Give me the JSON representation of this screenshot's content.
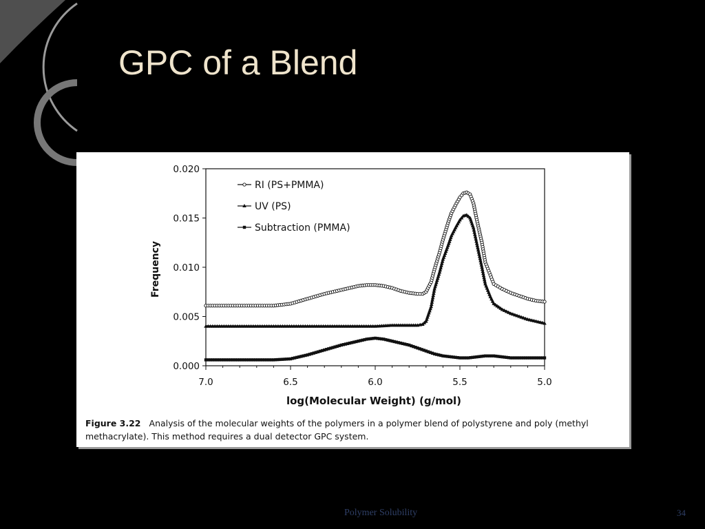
{
  "slide": {
    "title": "GPC of a Blend",
    "footer": "Polymer Solubility",
    "page_number": "34"
  },
  "caption": {
    "label": "Figure 3.22",
    "text": "Analysis of the molecular weights of the polymers in a polymer blend of polystyrene and poly (methyl methacrylate). This method requires a dual detector GPC system."
  },
  "colors": {
    "background": "#000000",
    "title": "#efe4cc",
    "footer": "#2f3f66",
    "ink": "#111111"
  },
  "chart_data": {
    "type": "line",
    "title": "",
    "xlabel": "log(Molecular Weight) (g/mol)",
    "ylabel": "Frequency",
    "xlim": [
      7.0,
      5.0
    ],
    "ylim": [
      0.0,
      0.02
    ],
    "x_ticks": [
      "7.0",
      "6.5",
      "6.0",
      "5.5",
      "5.0"
    ],
    "y_ticks": [
      "0.020",
      "0.015",
      "0.010",
      "0.005",
      "0.000"
    ],
    "grid": false,
    "legend_position": "top-left",
    "series": [
      {
        "name": "RI (PS+PMMA)",
        "marker": "circle",
        "x": [
          7.0,
          6.8,
          6.6,
          6.5,
          6.4,
          6.3,
          6.2,
          6.1,
          6.05,
          6.0,
          5.95,
          5.9,
          5.85,
          5.8,
          5.75,
          5.72,
          5.7,
          5.67,
          5.65,
          5.62,
          5.6,
          5.57,
          5.55,
          5.52,
          5.5,
          5.48,
          5.46,
          5.44,
          5.42,
          5.4,
          5.37,
          5.35,
          5.32,
          5.3,
          5.25,
          5.2,
          5.15,
          5.1,
          5.05,
          5.0
        ],
        "y": [
          0.0061,
          0.0061,
          0.0061,
          0.0063,
          0.0068,
          0.0073,
          0.0077,
          0.0081,
          0.0082,
          0.0082,
          0.0081,
          0.0079,
          0.0076,
          0.0074,
          0.0073,
          0.0073,
          0.0075,
          0.0085,
          0.0098,
          0.0115,
          0.0128,
          0.0145,
          0.0155,
          0.0165,
          0.0171,
          0.0175,
          0.0176,
          0.0174,
          0.0165,
          0.0148,
          0.0125,
          0.0105,
          0.0092,
          0.0083,
          0.0078,
          0.0074,
          0.0071,
          0.0068,
          0.0066,
          0.0065
        ]
      },
      {
        "name": "UV (PS)",
        "marker": "triangle",
        "x": [
          7.0,
          6.8,
          6.6,
          6.4,
          6.2,
          6.0,
          5.9,
          5.8,
          5.75,
          5.72,
          5.7,
          5.67,
          5.65,
          5.62,
          5.6,
          5.57,
          5.55,
          5.52,
          5.5,
          5.48,
          5.46,
          5.44,
          5.42,
          5.4,
          5.37,
          5.35,
          5.32,
          5.3,
          5.25,
          5.2,
          5.15,
          5.1,
          5.05,
          5.0
        ],
        "y": [
          0.004,
          0.004,
          0.004,
          0.004,
          0.004,
          0.004,
          0.0041,
          0.0041,
          0.0041,
          0.0042,
          0.0045,
          0.006,
          0.0078,
          0.0095,
          0.0108,
          0.0122,
          0.0132,
          0.0142,
          0.0148,
          0.0152,
          0.0153,
          0.015,
          0.014,
          0.0124,
          0.01,
          0.0083,
          0.007,
          0.0063,
          0.0057,
          0.0053,
          0.005,
          0.0047,
          0.0045,
          0.0043
        ]
      },
      {
        "name": "Subtraction (PMMA)",
        "marker": "square",
        "x": [
          7.0,
          6.8,
          6.6,
          6.5,
          6.4,
          6.3,
          6.2,
          6.1,
          6.05,
          6.0,
          5.95,
          5.9,
          5.85,
          5.8,
          5.75,
          5.7,
          5.65,
          5.6,
          5.55,
          5.5,
          5.45,
          5.4,
          5.35,
          5.3,
          5.25,
          5.2,
          5.1,
          5.0
        ],
        "y": [
          0.0006,
          0.0006,
          0.0006,
          0.0007,
          0.0011,
          0.0016,
          0.0021,
          0.0025,
          0.0027,
          0.0028,
          0.0027,
          0.0025,
          0.0023,
          0.0021,
          0.0018,
          0.0015,
          0.0012,
          0.001,
          0.0009,
          0.0008,
          0.0008,
          0.0009,
          0.001,
          0.001,
          0.0009,
          0.0008,
          0.0008,
          0.0008
        ]
      }
    ]
  }
}
